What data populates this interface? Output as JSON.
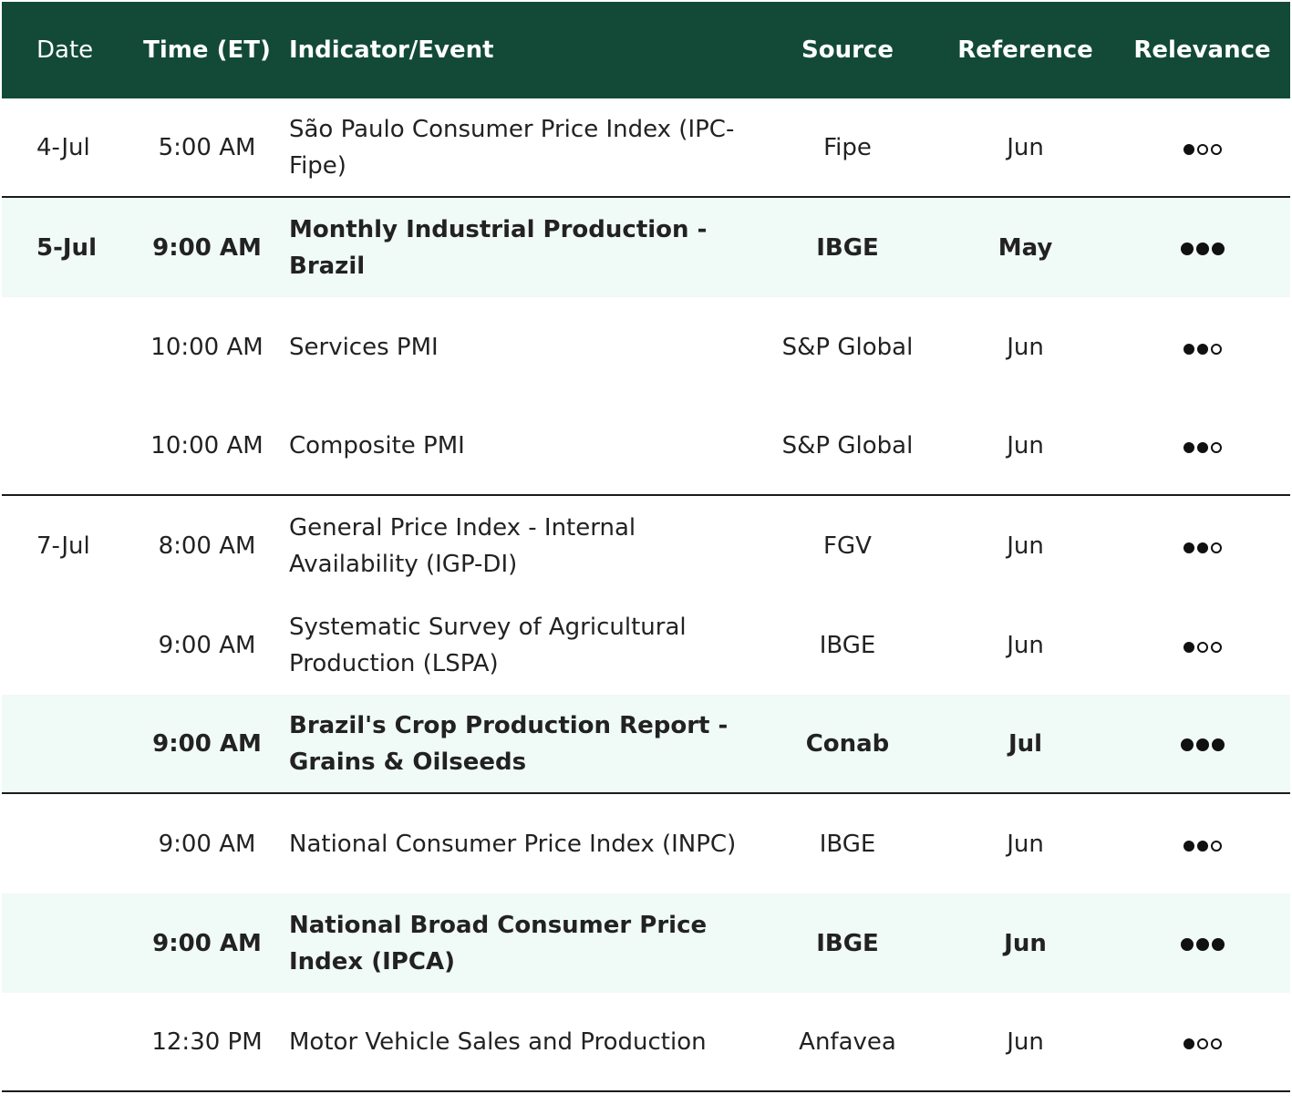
{
  "header": {
    "date": "Date",
    "time": "Time (ET)",
    "indicator": "Indicator/Event",
    "source": "Source",
    "reference": "Reference",
    "relevance": "Relevance"
  },
  "rows": [
    {
      "date": "4-Jul",
      "time": "5:00 AM",
      "indicator": "São Paulo Consumer Price Index (IPC-Fipe)",
      "source": "Fipe",
      "reference": "Jun",
      "relevance": 1,
      "highlight": false,
      "separator": true
    },
    {
      "date": "5-Jul",
      "time": "9:00 AM",
      "indicator": "Monthly Industrial Production - Brazil",
      "source": "IBGE",
      "reference": "May",
      "relevance": 3,
      "highlight": true,
      "separator": false
    },
    {
      "date": "",
      "time": "10:00 AM",
      "indicator": "Services PMI",
      "source": "S&P Global",
      "reference": "Jun",
      "relevance": 2,
      "highlight": false,
      "separator": false
    },
    {
      "date": "",
      "time": "10:00 AM",
      "indicator": "Composite PMI",
      "source": "S&P Global",
      "reference": "Jun",
      "relevance": 2,
      "highlight": false,
      "separator": true
    },
    {
      "date": "7-Jul",
      "time": "8:00 AM",
      "indicator": "General Price Index - Internal Availability (IGP-DI)",
      "source": "FGV",
      "reference": "Jun",
      "relevance": 2,
      "highlight": false,
      "separator": false
    },
    {
      "date": "",
      "time": "9:00 AM",
      "indicator": "Systematic Survey of Agricultural Production (LSPA)",
      "source": "IBGE",
      "reference": "Jun",
      "relevance": 1,
      "highlight": false,
      "separator": false
    },
    {
      "date": "",
      "time": "9:00 AM",
      "indicator": "Brazil's Crop Production Report - Grains & Oilseeds",
      "source": "Conab",
      "reference": "Jul",
      "relevance": 3,
      "highlight": true,
      "separator": true
    },
    {
      "date": "",
      "time": "9:00 AM",
      "indicator": "National Consumer Price Index (INPC)",
      "source": "IBGE",
      "reference": "Jun",
      "relevance": 2,
      "highlight": false,
      "separator": false
    },
    {
      "date": "",
      "time": "9:00 AM",
      "indicator": "National Broad Consumer Price Index (IPCA)",
      "source": "IBGE",
      "reference": "Jun",
      "relevance": 3,
      "highlight": true,
      "separator": false
    },
    {
      "date": "",
      "time": "12:30 PM",
      "indicator": "Motor Vehicle Sales and Production",
      "source": "Anfavea",
      "reference": "Jun",
      "relevance": 1,
      "highlight": false,
      "separator": true
    }
  ],
  "relevance_max": 3
}
